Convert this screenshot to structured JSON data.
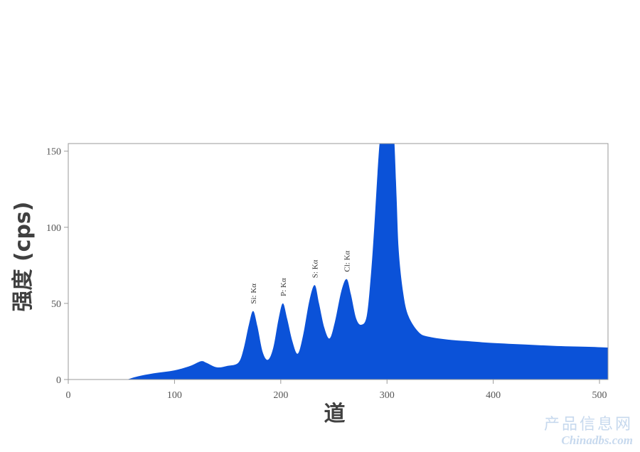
{
  "chart_data": {
    "type": "area",
    "title": "",
    "xlabel": "道",
    "ylabel": "强度 (cps)",
    "xlim": [
      0,
      508
    ],
    "ylim": [
      0,
      155
    ],
    "xticks": [
      0,
      100,
      200,
      300,
      400,
      500
    ],
    "yticks": [
      0,
      50,
      100,
      150
    ],
    "grid": false,
    "fill_color": "#0b52d8",
    "series": [
      {
        "x": [
          0,
          50,
          55,
          65,
          80,
          100,
          115,
          125,
          130,
          140,
          150,
          160,
          165,
          170,
          174,
          178,
          183,
          188,
          193,
          198,
          202,
          206,
          211,
          216,
          221,
          227,
          232,
          236,
          241,
          246,
          251,
          257,
          262,
          266,
          271,
          276,
          281,
          285,
          288,
          291,
          293,
          294,
          300,
          306,
          307,
          309,
          311,
          315,
          320,
          330,
          340,
          360,
          380,
          400,
          430,
          460,
          490,
          508
        ],
        "y": [
          0,
          0,
          0,
          2,
          4,
          6,
          9,
          12,
          11,
          8,
          9,
          11,
          20,
          36,
          45,
          35,
          18,
          13,
          21,
          40,
          50,
          40,
          25,
          17,
          29,
          52,
          62,
          50,
          34,
          27,
          38,
          58,
          66,
          56,
          40,
          36,
          42,
          70,
          100,
          135,
          155,
          155,
          155,
          155,
          155,
          120,
          85,
          58,
          42,
          31,
          28,
          26,
          25,
          24,
          23,
          22,
          21.5,
          21
        ]
      }
    ],
    "annotations": [
      {
        "text": "Si: Kα",
        "x": 174,
        "y": 45
      },
      {
        "text": "P: Kα",
        "x": 202,
        "y": 50
      },
      {
        "text": "S: Kα",
        "x": 232,
        "y": 62
      },
      {
        "text": "Cl: Kα",
        "x": 262,
        "y": 66
      }
    ]
  },
  "watermark": {
    "line1": "产品信息网",
    "line2": "Chinadbs.com"
  }
}
